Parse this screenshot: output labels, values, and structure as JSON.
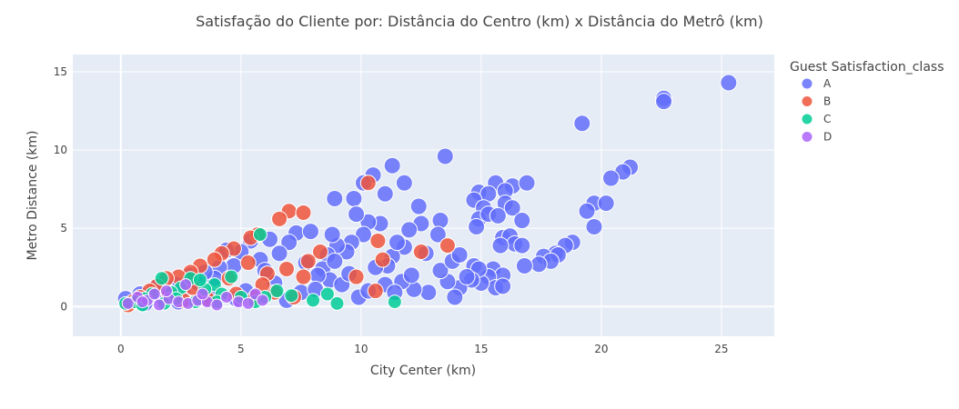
{
  "chart_data": {
    "type": "scatter",
    "title": "Satisfação do Cliente por: Distância do Centro (km) x Distância do Metrô (km)",
    "xlabel": "City Center (km)",
    "ylabel": "Metro Distance (km)",
    "xlim": [
      -2,
      27.2
    ],
    "ylim": [
      -1.9,
      16.1
    ],
    "xticks": [
      0,
      5,
      10,
      15,
      20,
      25
    ],
    "yticks": [
      0,
      5,
      10,
      15
    ],
    "grid": true,
    "legend": {
      "title": "Guest Satisfaction_class",
      "position": "top-right"
    },
    "colors": {
      "plot_bg": "#e5ecf6",
      "grid": "#ffffff",
      "A": "#636efa",
      "B": "#ef553b",
      "C": "#00cc96",
      "D": "#ab63fa"
    },
    "series": [
      {
        "name": "A",
        "points": [
          [
            25.3,
            14.3
          ],
          [
            22.6,
            13.3
          ],
          [
            22.6,
            13.1
          ],
          [
            19.2,
            11.7
          ],
          [
            13.5,
            9.6
          ],
          [
            11.3,
            9.0
          ],
          [
            10.5,
            8.4
          ],
          [
            10.1,
            7.9
          ],
          [
            11.8,
            7.9
          ],
          [
            15.6,
            7.9
          ],
          [
            16.3,
            7.7
          ],
          [
            16.9,
            7.9
          ],
          [
            8.9,
            6.9
          ],
          [
            9.7,
            6.9
          ],
          [
            11.0,
            7.2
          ],
          [
            14.9,
            7.3
          ],
          [
            15.3,
            7.2
          ],
          [
            16.0,
            7.4
          ],
          [
            12.4,
            6.4
          ],
          [
            14.7,
            6.8
          ],
          [
            15.1,
            6.3
          ],
          [
            16.0,
            6.6
          ],
          [
            16.3,
            6.3
          ],
          [
            21.2,
            8.9
          ],
          [
            20.9,
            8.6
          ],
          [
            20.4,
            8.2
          ],
          [
            19.7,
            6.6
          ],
          [
            19.4,
            6.1
          ],
          [
            20.2,
            6.6
          ],
          [
            19.7,
            5.1
          ],
          [
            13.3,
            5.5
          ],
          [
            14.9,
            5.6
          ],
          [
            15.3,
            5.9
          ],
          [
            15.7,
            5.8
          ],
          [
            16.7,
            5.5
          ],
          [
            14.8,
            5.1
          ],
          [
            15.9,
            4.4
          ],
          [
            16.2,
            4.5
          ],
          [
            16.4,
            4.0
          ],
          [
            15.8,
            3.9
          ],
          [
            16.7,
            3.9
          ],
          [
            18.8,
            4.1
          ],
          [
            18.5,
            3.9
          ],
          [
            18.1,
            3.4
          ],
          [
            17.6,
            3.2
          ],
          [
            18.2,
            3.3
          ],
          [
            17.9,
            2.9
          ],
          [
            17.4,
            2.7
          ],
          [
            16.8,
            2.6
          ],
          [
            15.5,
            2.4
          ],
          [
            15.9,
            2.0
          ],
          [
            15.3,
            1.9
          ],
          [
            15.6,
            1.2
          ],
          [
            15.9,
            1.3
          ],
          [
            15.0,
            1.5
          ],
          [
            14.7,
            2.6
          ],
          [
            14.9,
            2.4
          ],
          [
            14.6,
            1.7
          ],
          [
            14.1,
            1.2
          ],
          [
            13.6,
            1.6
          ],
          [
            13.3,
            2.3
          ],
          [
            13.8,
            2.9
          ],
          [
            14.1,
            3.3
          ],
          [
            14.4,
            1.9
          ],
          [
            13.9,
            0.6
          ],
          [
            12.8,
            0.9
          ],
          [
            12.2,
            1.1
          ],
          [
            11.7,
            1.6
          ],
          [
            11.0,
            1.4
          ],
          [
            11.4,
            0.9
          ],
          [
            12.7,
            3.4
          ],
          [
            12.5,
            5.3
          ],
          [
            12.0,
            4.9
          ],
          [
            11.8,
            3.8
          ],
          [
            11.3,
            3.2
          ],
          [
            11.1,
            2.6
          ],
          [
            10.8,
            5.3
          ],
          [
            10.3,
            5.4
          ],
          [
            10.1,
            4.6
          ],
          [
            9.6,
            4.1
          ],
          [
            9.4,
            3.5
          ],
          [
            9.0,
            3.9
          ],
          [
            8.8,
            4.6
          ],
          [
            8.6,
            3.3
          ],
          [
            8.4,
            2.4
          ],
          [
            8.7,
            1.7
          ],
          [
            9.2,
            1.4
          ],
          [
            9.9,
            0.6
          ],
          [
            10.3,
            1.0
          ],
          [
            8.2,
            2.0
          ],
          [
            7.7,
            2.8
          ],
          [
            7.3,
            4.7
          ],
          [
            7.0,
            4.1
          ],
          [
            6.6,
            3.4
          ],
          [
            6.2,
            4.3
          ],
          [
            5.8,
            3.0
          ],
          [
            5.4,
            4.2
          ],
          [
            5.0,
            3.5
          ],
          [
            4.7,
            2.6
          ],
          [
            4.4,
            3.6
          ],
          [
            4.1,
            2.5
          ],
          [
            3.9,
            1.8
          ],
          [
            3.5,
            2.2
          ],
          [
            3.2,
            1.5
          ],
          [
            2.9,
            2.0
          ],
          [
            2.6,
            1.1
          ],
          [
            2.3,
            1.4
          ],
          [
            2.0,
            0.9
          ],
          [
            1.7,
            0.6
          ],
          [
            1.4,
            1.2
          ],
          [
            1.1,
            0.5
          ],
          [
            0.8,
            0.8
          ],
          [
            0.5,
            0.3
          ],
          [
            0.2,
            0.5
          ],
          [
            1.0,
            0.2
          ],
          [
            2.4,
            0.3
          ],
          [
            3.7,
            0.7
          ],
          [
            5.2,
            1.0
          ],
          [
            6.4,
            1.5
          ],
          [
            7.5,
            0.9
          ],
          [
            8.1,
            1.1
          ],
          [
            9.5,
            2.1
          ],
          [
            6.9,
            0.4
          ],
          [
            4.8,
            0.5
          ],
          [
            13.2,
            4.6
          ],
          [
            12.1,
            2.0
          ],
          [
            10.6,
            2.5
          ],
          [
            9.8,
            5.9
          ],
          [
            7.9,
            4.8
          ],
          [
            8.9,
            2.9
          ],
          [
            6.0,
            2.3
          ],
          [
            11.5,
            4.1
          ]
        ]
      },
      {
        "name": "B",
        "points": [
          [
            10.3,
            7.9
          ],
          [
            7.0,
            6.1
          ],
          [
            7.6,
            6.0
          ],
          [
            6.6,
            5.6
          ],
          [
            5.7,
            4.6
          ],
          [
            5.4,
            4.4
          ],
          [
            4.7,
            3.7
          ],
          [
            4.2,
            3.4
          ],
          [
            3.9,
            3.0
          ],
          [
            3.3,
            2.6
          ],
          [
            2.9,
            2.2
          ],
          [
            2.4,
            1.9
          ],
          [
            1.9,
            1.8
          ],
          [
            1.5,
            1.3
          ],
          [
            1.2,
            1.0
          ],
          [
            0.8,
            0.6
          ],
          [
            0.5,
            0.3
          ],
          [
            0.3,
            0.1
          ],
          [
            2.0,
            0.8
          ],
          [
            3.0,
            1.2
          ],
          [
            4.5,
            1.8
          ],
          [
            5.3,
            2.8
          ],
          [
            6.1,
            2.1
          ],
          [
            6.9,
            2.4
          ],
          [
            7.6,
            1.9
          ],
          [
            7.2,
            0.6
          ],
          [
            6.4,
            0.9
          ],
          [
            5.6,
            0.6
          ],
          [
            4.8,
            0.8
          ],
          [
            3.6,
            0.5
          ],
          [
            8.3,
            3.5
          ],
          [
            9.8,
            1.9
          ],
          [
            10.7,
            4.2
          ],
          [
            10.9,
            3.0
          ],
          [
            10.6,
            1.0
          ],
          [
            12.5,
            3.5
          ],
          [
            13.6,
            3.9
          ],
          [
            7.8,
            2.9
          ],
          [
            5.9,
            1.4
          ],
          [
            2.6,
            0.4
          ]
        ]
      },
      {
        "name": "C",
        "points": [
          [
            5.8,
            4.6
          ],
          [
            4.6,
            1.9
          ],
          [
            3.9,
            1.4
          ],
          [
            3.5,
            1.1
          ],
          [
            2.9,
            1.8
          ],
          [
            2.5,
            1.2
          ],
          [
            2.1,
            0.9
          ],
          [
            1.7,
            1.8
          ],
          [
            1.3,
            0.8
          ],
          [
            1.0,
            0.5
          ],
          [
            0.6,
            0.3
          ],
          [
            0.2,
            0.2
          ],
          [
            4.2,
            0.8
          ],
          [
            5.0,
            0.6
          ],
          [
            5.6,
            0.3
          ],
          [
            6.5,
            1.0
          ],
          [
            7.1,
            0.7
          ],
          [
            8.0,
            0.4
          ],
          [
            8.6,
            0.8
          ],
          [
            9.0,
            0.2
          ],
          [
            11.4,
            0.3
          ],
          [
            3.1,
            0.3
          ],
          [
            1.8,
            0.2
          ],
          [
            6.0,
            0.6
          ],
          [
            4.0,
            0.3
          ],
          [
            2.3,
            0.5
          ],
          [
            0.9,
            0.1
          ],
          [
            3.3,
            1.7
          ]
        ]
      },
      {
        "name": "D",
        "points": [
          [
            0.3,
            0.2
          ],
          [
            0.7,
            0.6
          ],
          [
            1.1,
            0.4
          ],
          [
            1.4,
            0.8
          ],
          [
            1.6,
            0.1
          ],
          [
            2.0,
            0.5
          ],
          [
            2.4,
            0.3
          ],
          [
            2.7,
            1.4
          ],
          [
            2.8,
            0.2
          ],
          [
            3.2,
            0.4
          ],
          [
            3.6,
            0.3
          ],
          [
            4.0,
            0.1
          ],
          [
            4.4,
            0.6
          ],
          [
            4.9,
            0.3
          ],
          [
            5.3,
            0.2
          ],
          [
            5.6,
            0.8
          ],
          [
            5.9,
            0.4
          ],
          [
            1.9,
            1.0
          ],
          [
            3.4,
            0.8
          ],
          [
            0.9,
            0.3
          ]
        ]
      }
    ]
  }
}
